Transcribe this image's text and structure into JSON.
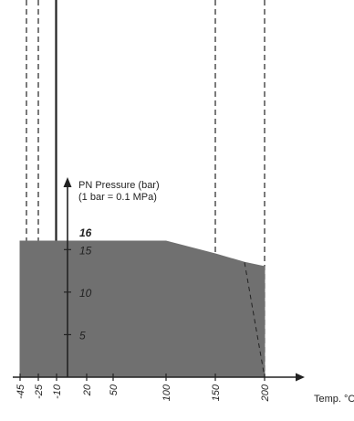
{
  "chart_data": {
    "type": "area",
    "ylabel_line1": "PN Pressure (bar)",
    "ylabel_line2": "(1 bar = 0.1 MPa)",
    "xlabel": "Temp. °C",
    "xlim": [
      -45,
      220
    ],
    "ylim": [
      0,
      20
    ],
    "x_ticks": [
      "-45",
      "-25",
      "-10",
      "20",
      "50",
      "100",
      "150",
      "200"
    ],
    "y_ticks": [
      "5",
      "10",
      "15"
    ],
    "max_label": "16",
    "series": [
      {
        "x": [
          -45,
          100,
          150,
          180,
          200
        ],
        "y": [
          16,
          16,
          14.5,
          13.5,
          13
        ]
      }
    ],
    "fill_base_right": {
      "x": 200,
      "y": 0
    },
    "dashed_boundary": [
      {
        "x": 180,
        "y": 13.5
      },
      {
        "x": 200,
        "y": 0
      }
    ],
    "reference_lines": [
      {
        "x": -40,
        "style": "dashed"
      },
      {
        "x": -25,
        "style": "dashed"
      },
      {
        "x": -15,
        "style": "solid"
      },
      {
        "x": -10,
        "style": "solid"
      },
      {
        "x": 150,
        "style": "dashed"
      },
      {
        "x": 200,
        "style": "dashed"
      }
    ],
    "colors": {
      "fill": "#707070",
      "line": "#222222",
      "background": "#ffffff"
    }
  }
}
